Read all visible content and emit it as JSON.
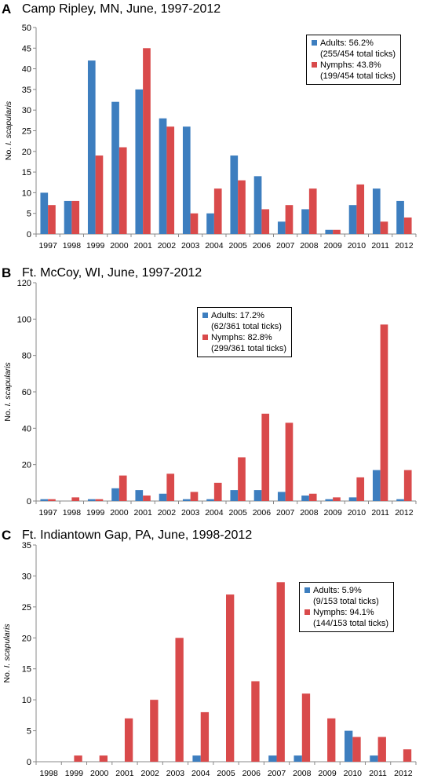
{
  "colors": {
    "adults": "#3D7EBF",
    "nymphs": "#D94A4B",
    "axis": "#888888"
  },
  "chart_data": [
    {
      "type": "bar",
      "panel": "A",
      "title": "Camp Ripley, MN, June, 1997-2012",
      "ylabel_prefix": "No. ",
      "ylabel_italic": "I. scapularis",
      "ylim": [
        0,
        50
      ],
      "yticks": [
        0,
        5,
        10,
        15,
        20,
        25,
        30,
        35,
        40,
        45,
        50
      ],
      "categories": [
        "1997",
        "1998",
        "1999",
        "2000",
        "2001",
        "2002",
        "2003",
        "2004",
        "2005",
        "2006",
        "2007",
        "2008",
        "2009",
        "2010",
        "2011",
        "2012"
      ],
      "series": [
        {
          "name": "Adults: 56.2%",
          "detail": "(255/454 total ticks)",
          "values": [
            10,
            8,
            42,
            32,
            35,
            28,
            26,
            5,
            19,
            14,
            3,
            6,
            1,
            7,
            11,
            8
          ]
        },
        {
          "name": "Nymphs: 43.8%",
          "detail": "(199/454 total ticks)",
          "values": [
            7,
            8,
            19,
            21,
            45,
            26,
            5,
            11,
            13,
            6,
            7,
            11,
            1,
            12,
            3,
            4
          ]
        }
      ]
    },
    {
      "type": "bar",
      "panel": "B",
      "title": "Ft. McCoy, WI, June, 1997-2012",
      "ylabel_prefix": "No. ",
      "ylabel_italic": "I. scapularis",
      "ylim": [
        0,
        120
      ],
      "yticks": [
        0,
        20,
        40,
        60,
        80,
        100,
        120
      ],
      "categories": [
        "1997",
        "1998",
        "1999",
        "2000",
        "2001",
        "2002",
        "2003",
        "2004",
        "2005",
        "2006",
        "2007",
        "2008",
        "2009",
        "2010",
        "2011",
        "2012"
      ],
      "series": [
        {
          "name": "Adults: 17.2%",
          "detail": "(62/361 total ticks)",
          "values": [
            1,
            0,
            1,
            7,
            6,
            4,
            1,
            1,
            6,
            6,
            5,
            3,
            1,
            2,
            17,
            1
          ]
        },
        {
          "name": "Nymphs: 82.8%",
          "detail": "(299/361 total ticks)",
          "values": [
            1,
            2,
            1,
            14,
            3,
            15,
            5,
            10,
            24,
            48,
            43,
            4,
            2,
            13,
            97,
            17
          ]
        }
      ]
    },
    {
      "type": "bar",
      "panel": "C",
      "title": "Ft. Indiantown Gap, PA, June, 1998-2012",
      "ylabel_prefix": "No. ",
      "ylabel_italic": "I. scapularis",
      "ylim": [
        0,
        35
      ],
      "yticks": [
        0,
        5,
        10,
        15,
        20,
        25,
        30,
        35
      ],
      "categories": [
        "1998",
        "1999",
        "2000",
        "2001",
        "2002",
        "2003",
        "2004",
        "2005",
        "2006",
        "2007",
        "2008",
        "2009",
        "2010",
        "2011",
        "2012"
      ],
      "series": [
        {
          "name": "Adults: 5.9%",
          "detail": "(9/153 total ticks)",
          "values": [
            0,
            0,
            0,
            0,
            0,
            0,
            1,
            0,
            0,
            1,
            1,
            0,
            5,
            1,
            0
          ]
        },
        {
          "name": "Nymphs: 94.1%",
          "detail": "(144/153 total ticks)",
          "values": [
            0,
            1,
            1,
            7,
            10,
            20,
            8,
            27,
            13,
            29,
            11,
            7,
            4,
            4,
            2
          ]
        }
      ]
    }
  ]
}
